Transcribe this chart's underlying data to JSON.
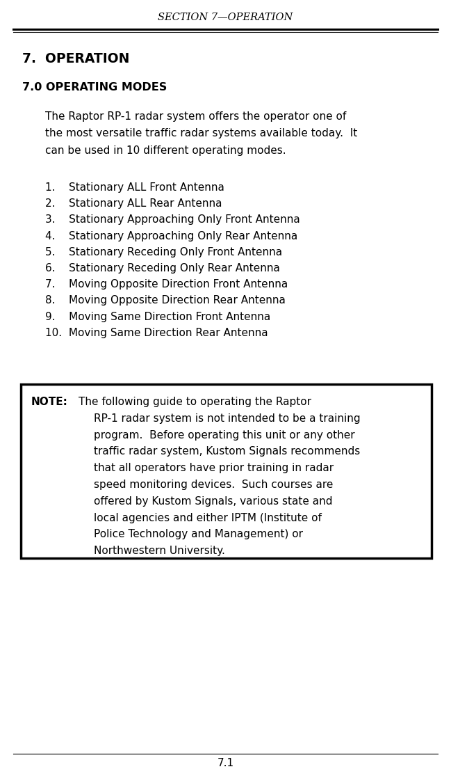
{
  "header_text": "SECTION 7—OPERATION",
  "title1": "7.  OPERATION",
  "title2": "7.0 OPERATING MODES",
  "intro_lines": [
    "The Raptor RP-1 radar system offers the operator one of",
    "the most versatile traffic radar systems available today.  It",
    "can be used in 10 different operating modes."
  ],
  "list_items": [
    "1.    Stationary ALL Front Antenna",
    "2.    Stationary ALL Rear Antenna",
    "3.    Stationary Approaching Only Front Antenna",
    "4.    Stationary Approaching Only Rear Antenna",
    "5.    Stationary Receding Only Front Antenna",
    "6.    Stationary Receding Only Rear Antenna",
    "7.    Moving Opposite Direction Front Antenna",
    "8.    Moving Opposite Direction Rear Antenna",
    "9.    Moving Same Direction Front Antenna",
    "10.  Moving Same Direction Rear Antenna"
  ],
  "note_lines": [
    "The following guide to operating the Raptor",
    "RP-1 radar system is not intended to be a training",
    "program.  Before operating this unit or any other",
    "traffic radar system, Kustom Signals recommends",
    "that all operators have prior training in radar",
    "speed monitoring devices.  Such courses are",
    "offered by Kustom Signals, various state and",
    "local agencies and either IPTM (Institute of",
    "Police Technology and Management) or",
    "Northwestern University."
  ],
  "footer_text": "7.1",
  "bg_color": "#ffffff",
  "text_color": "#000000",
  "page_width": 6.49,
  "page_height": 11.15,
  "dpi": 100
}
